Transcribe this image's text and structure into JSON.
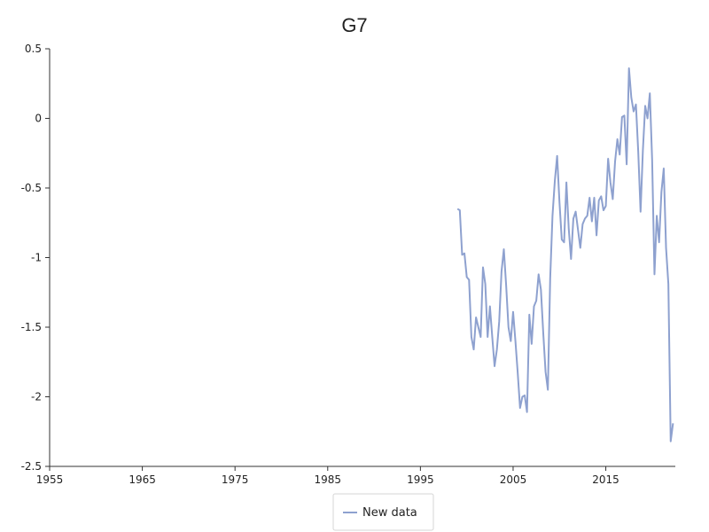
{
  "chart_data": {
    "type": "line",
    "title": "G7",
    "xlabel": "",
    "ylabel": "",
    "xlim": [
      1955,
      2022.5
    ],
    "ylim": [
      -2.5,
      0.5
    ],
    "x_ticks": [
      1955,
      1965,
      1975,
      1985,
      1995,
      2005,
      2015
    ],
    "y_ticks": [
      0.5,
      0,
      -0.5,
      -1,
      -1.5,
      -2,
      -2.5
    ],
    "grid": false,
    "legend": {
      "position": "bottom-center"
    },
    "colors": {
      "series": "#8ea1cf"
    },
    "series": [
      {
        "name": "New data",
        "x": [
          1999.0,
          1999.25,
          1999.5,
          1999.75,
          2000.0,
          2000.25,
          2000.5,
          2000.75,
          2001.0,
          2001.25,
          2001.5,
          2001.75,
          2002.0,
          2002.25,
          2002.5,
          2002.75,
          2003.0,
          2003.25,
          2003.5,
          2003.75,
          2004.0,
          2004.25,
          2004.5,
          2004.75,
          2005.0,
          2005.25,
          2005.5,
          2005.75,
          2006.0,
          2006.25,
          2006.5,
          2006.75,
          2007.0,
          2007.25,
          2007.5,
          2007.75,
          2008.0,
          2008.25,
          2008.5,
          2008.75,
          2009.0,
          2009.25,
          2009.5,
          2009.75,
          2010.0,
          2010.25,
          2010.5,
          2010.75,
          2011.0,
          2011.25,
          2011.5,
          2011.75,
          2012.0,
          2012.25,
          2012.5,
          2012.75,
          2013.0,
          2013.25,
          2013.5,
          2013.75,
          2014.0,
          2014.25,
          2014.5,
          2014.75,
          2015.0,
          2015.25,
          2015.5,
          2015.75,
          2016.0,
          2016.25,
          2016.5,
          2016.75,
          2017.0,
          2017.25,
          2017.5,
          2017.75,
          2018.0,
          2018.25,
          2018.5,
          2018.75,
          2019.0,
          2019.25,
          2019.5,
          2019.75,
          2020.0,
          2020.25,
          2020.5,
          2020.75,
          2021.0,
          2021.25,
          2021.5,
          2021.75,
          2022.0,
          2022.25
        ],
        "y": [
          -0.65,
          -0.66,
          -0.98,
          -0.97,
          -1.14,
          -1.16,
          -1.57,
          -1.66,
          -1.43,
          -1.5,
          -1.57,
          -1.07,
          -1.19,
          -1.57,
          -1.35,
          -1.57,
          -1.78,
          -1.66,
          -1.46,
          -1.1,
          -0.94,
          -1.2,
          -1.5,
          -1.6,
          -1.39,
          -1.6,
          -1.83,
          -2.08,
          -2.0,
          -1.99,
          -2.11,
          -1.41,
          -1.62,
          -1.35,
          -1.31,
          -1.12,
          -1.23,
          -1.54,
          -1.82,
          -1.95,
          -1.15,
          -0.7,
          -0.45,
          -0.27,
          -0.6,
          -0.87,
          -0.89,
          -0.46,
          -0.79,
          -1.01,
          -0.72,
          -0.67,
          -0.8,
          -0.93,
          -0.76,
          -0.72,
          -0.7,
          -0.57,
          -0.74,
          -0.57,
          -0.84,
          -0.59,
          -0.56,
          -0.66,
          -0.63,
          -0.29,
          -0.46,
          -0.58,
          -0.31,
          -0.15,
          -0.26,
          0.01,
          0.02,
          -0.33,
          0.36,
          0.15,
          0.05,
          0.1,
          -0.24,
          -0.67,
          -0.23,
          0.09,
          0.0,
          0.18,
          -0.3,
          -1.12,
          -0.7,
          -0.89,
          -0.53,
          -0.36,
          -0.93,
          -1.19,
          -2.32,
          -2.19
        ]
      }
    ]
  }
}
